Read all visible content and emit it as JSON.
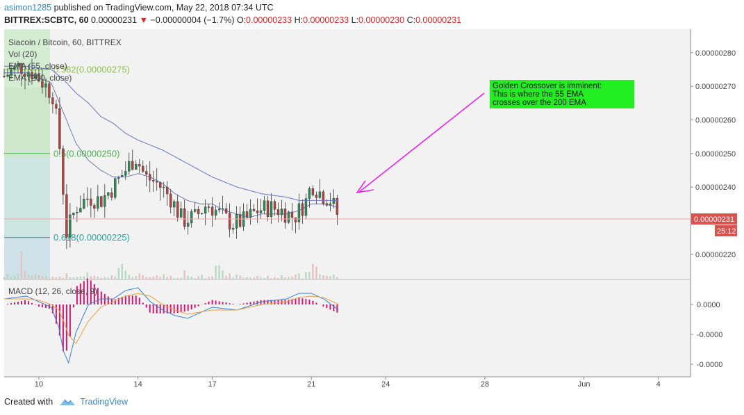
{
  "header": {
    "author": "asimon1285",
    "published_text": " published on TradingView.com, May 22, 2018 07:34 UTC",
    "symbol": "BITTREX:SCBTC, 60",
    "last_price": "0.00000231",
    "change": "−0.00000004 (−1.7%)",
    "open_label": "O:",
    "open": "0.00000233",
    "high_label": "H:",
    "high": "0.00000233",
    "low_label": "L:",
    "low": "0.00000230",
    "close_label": "C:",
    "close": "0.00000231"
  },
  "legend": {
    "title": "Siacoin / Bitcoin, 60, BITTREX",
    "vol": "Vol (20)",
    "ema55": "EMA (55, close)",
    "ema200": "EMA (200, close)",
    "macd": "MACD (12, 26, close, 9)"
  },
  "fib": [
    {
      "label": "0.382(0.00000275)",
      "value": 2.75e-06,
      "color": "#8bc34a"
    },
    {
      "label": "0.5(0.00000250)",
      "value": 2.5e-06,
      "color": "#4caf50"
    },
    {
      "label": "0.618(0.00000225)",
      "value": 2.25e-06,
      "color": "#26a69a"
    }
  ],
  "annotation": {
    "lines": [
      "Golden Crossover is imminent:",
      "This is where the 55 EMA",
      "crosses over the 200 EMA"
    ],
    "bg_color": "#22ee22",
    "arrow_color": "#ee22ee"
  },
  "price_badge": {
    "value": "0.00000231",
    "countdown": "25:12",
    "color": "#d9544f"
  },
  "footer": {
    "created_with": "Created with",
    "brand": "TradingView"
  },
  "chart_data": [
    {
      "type": "candlestick",
      "title": "Siacoin / Bitcoin, 60, BITTREX",
      "y_ticks": [
        "0.00000280",
        "0.00000270",
        "0.00000260",
        "0.00000250",
        "0.00000240",
        "0.00000220"
      ],
      "ylim": [
        2.125e-06,
        2.87e-06
      ],
      "x_ticks": [
        "10",
        "14",
        "17",
        "21",
        "24",
        "28",
        "Jun",
        "4"
      ],
      "x_range_days": [
        8.6,
        36.3
      ],
      "close_path": {
        "x_days": [
          8.6,
          9.2,
          9.8,
          10.3,
          10.6,
          10.9,
          11.1,
          11.5,
          12.0,
          12.5,
          13.0,
          13.5,
          13.9,
          14.3,
          14.8,
          15.3,
          15.8,
          16.3,
          16.8,
          17.3,
          17.8,
          18.3,
          18.8,
          19.3,
          19.8,
          20.3,
          20.8,
          21.0,
          21.4,
          21.8,
          22.1
        ],
        "close": [
          2.73e-06,
          2.76e-06,
          2.74e-06,
          2.7e-06,
          2.67e-06,
          2.48e-06,
          2.26e-06,
          2.34e-06,
          2.37e-06,
          2.36e-06,
          2.4e-06,
          2.45e-06,
          2.49e-06,
          2.43e-06,
          2.41e-06,
          2.37e-06,
          2.3e-06,
          2.31e-06,
          2.35e-06,
          2.32e-06,
          2.29e-06,
          2.3e-06,
          2.33e-06,
          2.34e-06,
          2.33e-06,
          2.31e-06,
          2.36e-06,
          2.41e-06,
          2.38e-06,
          2.36e-06,
          2.31e-06
        ]
      },
      "ema55_path": {
        "x_days": [
          8.6,
          9.5,
          10.5,
          11.0,
          11.5,
          12.0,
          12.5,
          13.0,
          13.5,
          14.0,
          14.5,
          15.0,
          15.5,
          16.0,
          16.5,
          17.0,
          17.5,
          18.0,
          18.5,
          19.0,
          19.5,
          20.0,
          20.5,
          21.0,
          21.5,
          22.1
        ],
        "value": [
          2.74e-06,
          2.74e-06,
          2.71e-06,
          2.62e-06,
          2.53e-06,
          2.48e-06,
          2.45e-06,
          2.43e-06,
          2.43e-06,
          2.44e-06,
          2.43e-06,
          2.41e-06,
          2.38e-06,
          2.36e-06,
          2.35e-06,
          2.35e-06,
          2.33e-06,
          2.32e-06,
          2.31e-06,
          2.32e-06,
          2.32e-06,
          2.32e-06,
          2.33e-06,
          2.35e-06,
          2.35e-06,
          2.34e-06
        ]
      },
      "ema200_path": {
        "x_days": [
          8.6,
          9.5,
          10.5,
          11.0,
          11.5,
          12.0,
          12.5,
          13.0,
          13.5,
          14.0,
          15.0,
          16.0,
          17.0,
          18.0,
          19.0,
          20.0,
          20.5,
          21.0,
          21.5,
          22.1
        ],
        "value": [
          2.76e-06,
          2.76e-06,
          2.75e-06,
          2.72e-06,
          2.68e-06,
          2.65e-06,
          2.61e-06,
          2.59e-06,
          2.56e-06,
          2.54e-06,
          2.51e-06,
          2.47e-06,
          2.43e-06,
          2.4e-06,
          2.38e-06,
          2.37e-06,
          2.36e-06,
          2.36e-06,
          2.36e-06,
          2.36e-06
        ]
      },
      "volume_relative": [
        0.15,
        0.2,
        0.1,
        0.25,
        0.3,
        0.9,
        0.6,
        0.3,
        0.25,
        0.2,
        0.15,
        0.2,
        0.15,
        0.1,
        0.12,
        0.1,
        0.15,
        0.12,
        0.2,
        0.1,
        0.12,
        0.1,
        0.15,
        0.1,
        0.35,
        0.2,
        0.15,
        0.1
      ]
    },
    {
      "type": "line",
      "title": "MACD (12, 26, close, 9)",
      "y_ticks": [
        "0.0000",
        "-0.0000",
        "-0.0000"
      ],
      "macd_path": {
        "x_days": [
          8.6,
          9.5,
          10.0,
          10.5,
          10.8,
          11.0,
          11.2,
          11.5,
          12.0,
          12.5,
          13.0,
          13.5,
          14.0,
          14.5,
          15.0,
          15.5,
          16.0,
          17.0,
          18.0,
          19.0,
          20.0,
          20.5,
          21.0,
          21.5,
          22.1
        ],
        "value": [
          0.2,
          0.3,
          0.1,
          -0.1,
          -0.8,
          -1.7,
          -2.1,
          -1.0,
          0.0,
          0.2,
          0.2,
          0.5,
          0.6,
          0.1,
          -0.2,
          -0.4,
          -0.5,
          -0.1,
          -0.2,
          0.1,
          0.2,
          0.4,
          0.4,
          0.2,
          -0.2
        ]
      },
      "signal_path": {
        "x_days": [
          8.6,
          9.5,
          10.0,
          10.5,
          10.8,
          11.0,
          11.2,
          11.5,
          12.0,
          12.5,
          13.0,
          13.5,
          14.0,
          14.5,
          15.0,
          15.5,
          16.0,
          17.0,
          18.0,
          19.0,
          20.0,
          20.5,
          21.0,
          21.5,
          22.1
        ],
        "value": [
          0.2,
          0.2,
          0.15,
          0.0,
          -0.2,
          -0.6,
          -1.1,
          -1.4,
          -0.6,
          -0.1,
          0.1,
          0.3,
          0.4,
          0.3,
          0.0,
          -0.2,
          -0.35,
          -0.2,
          -0.2,
          0.0,
          0.1,
          0.25,
          0.3,
          0.25,
          0.0
        ]
      }
    }
  ]
}
